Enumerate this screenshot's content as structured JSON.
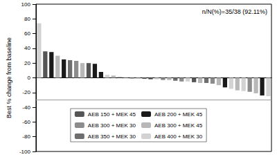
{
  "chart_data": {
    "type": "bar",
    "y_label": "Best % change from baseline",
    "annotations": [
      {
        "text": "n/N(%)=35/38 (92.11%)"
      }
    ],
    "categories": [
      null,
      null,
      null,
      null,
      null,
      null,
      null,
      null,
      null,
      null,
      null,
      null,
      null,
      null,
      null,
      null,
      null,
      null,
      null,
      null,
      null,
      null,
      null,
      null,
      null,
      null,
      null,
      null,
      null,
      null,
      null,
      null,
      null,
      null,
      null,
      null,
      null,
      null
    ],
    "series": [
      {
        "name": "AEB 150 + MEK 45",
        "color": "#555555",
        "values": [
          null,
          36,
          null,
          null,
          null,
          null,
          null,
          null,
          20,
          null,
          null,
          null,
          null,
          null,
          null,
          null,
          null,
          null,
          -2,
          null,
          null,
          null,
          null,
          null,
          null,
          -6,
          null,
          null,
          null,
          null,
          null,
          null,
          null,
          null,
          null,
          null,
          null,
          null
        ]
      },
      {
        "name": "AEB 200 + MEK 45",
        "color": "#1a1a1a",
        "values": [
          null,
          null,
          35,
          null,
          25,
          null,
          null,
          null,
          null,
          19,
          8,
          null,
          null,
          null,
          null,
          null,
          null,
          null,
          null,
          null,
          null,
          null,
          null,
          null,
          null,
          null,
          null,
          null,
          null,
          null,
          -13,
          null,
          null,
          null,
          null,
          null,
          -24,
          null
        ]
      },
      {
        "name": "AEB 300 + MEK 30",
        "color": "#8c8c8c",
        "values": [
          null,
          null,
          null,
          null,
          null,
          null,
          23,
          null,
          null,
          null,
          null,
          null,
          null,
          null,
          0.5,
          -1,
          null,
          null,
          null,
          null,
          -3,
          null,
          null,
          -5,
          null,
          null,
          null,
          null,
          -8,
          null,
          null,
          null,
          null,
          null,
          -19,
          null,
          null,
          null
        ]
      },
      {
        "name": "AEB 300 + MEK 45",
        "color": "#b8b8b8",
        "values": [
          null,
          null,
          null,
          30,
          null,
          null,
          null,
          20,
          null,
          null,
          null,
          null,
          3,
          null,
          null,
          null,
          -1,
          null,
          null,
          null,
          null,
          -3,
          null,
          null,
          null,
          null,
          -7,
          null,
          null,
          -10,
          null,
          null,
          -17,
          null,
          null,
          -21,
          null,
          null
        ]
      },
      {
        "name": "AEB 350 + MEK 30",
        "color": "#6e6e6e",
        "values": [
          null,
          null,
          null,
          null,
          null,
          24,
          null,
          null,
          null,
          null,
          null,
          null,
          null,
          1,
          null,
          null,
          null,
          -1.5,
          null,
          null,
          null,
          null,
          -4,
          null,
          null,
          null,
          null,
          -7,
          null,
          null,
          null,
          null,
          null,
          null,
          null,
          null,
          null,
          null
        ]
      },
      {
        "name": "AEB 400 + MEK 30",
        "color": "#d2d2d2",
        "values": [
          74,
          null,
          null,
          null,
          null,
          null,
          null,
          null,
          null,
          null,
          null,
          4,
          null,
          null,
          null,
          null,
          null,
          null,
          null,
          -2,
          null,
          null,
          null,
          null,
          -5,
          null,
          null,
          null,
          null,
          null,
          null,
          -15,
          null,
          -18,
          null,
          null,
          null,
          -25
        ]
      }
    ],
    "reference_lines": [
      -30
    ],
    "ylim": [
      -100,
      100
    ],
    "yticks": [
      -100,
      -80,
      -60,
      -40,
      -20,
      0,
      20,
      40,
      60,
      80,
      100
    ],
    "grid": false,
    "legend": "bottom",
    "tick_labels": "y"
  }
}
